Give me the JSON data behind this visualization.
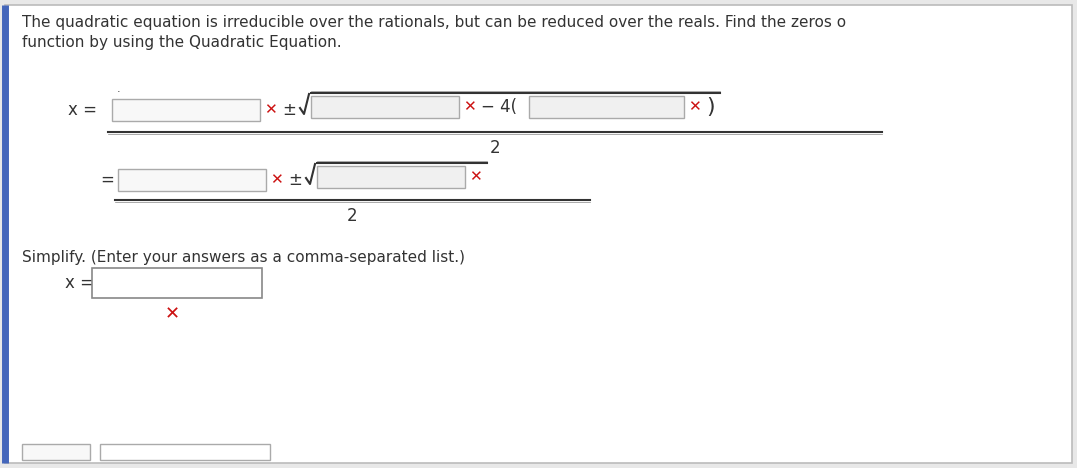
{
  "bg_color": "#e8e8e8",
  "panel_color": "#ffffff",
  "text_color": "#333333",
  "red_x_color": "#cc1111",
  "border_color": "#bbbbbb",
  "blue_border": "#4466bb",
  "title_text1": "The quadratic equation is irreducible over the rationals, but can be reduced over the reals. Find the zeros o",
  "title_text2": "function by using the Quadratic Equation.",
  "simplify_text": "Simplify. (Enter your answers as a comma-separated list.)",
  "denom1": "2",
  "denom2": "2",
  "pm_text": "±"
}
